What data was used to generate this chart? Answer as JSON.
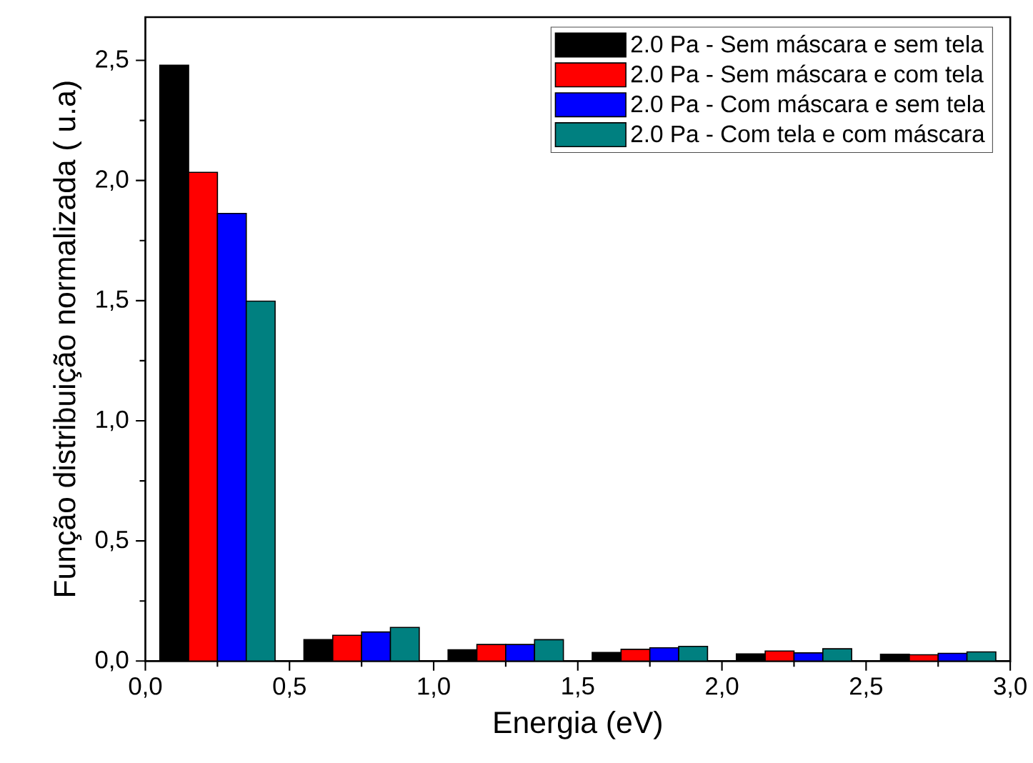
{
  "chart_data": {
    "type": "bar",
    "xlabel": "Energia (eV)",
    "ylabel": "Função distribuição normalizada ( u.a)",
    "xlim": [
      0,
      3.0
    ],
    "ylim": [
      0,
      2.68
    ],
    "xticks": [
      {
        "value": 0,
        "label": "0,0"
      },
      {
        "value": 0.5,
        "label": "0,5"
      },
      {
        "value": 1.0,
        "label": "1,0"
      },
      {
        "value": 1.5,
        "label": "1,5"
      },
      {
        "value": 2.0,
        "label": "2,0"
      },
      {
        "value": 2.5,
        "label": "2,5"
      },
      {
        "value": 3.0,
        "label": "3,0"
      }
    ],
    "yticks": [
      {
        "value": 0,
        "label": "0,0"
      },
      {
        "value": 0.5,
        "label": "0,5"
      },
      {
        "value": 1.0,
        "label": "1,0"
      },
      {
        "value": 1.5,
        "label": "1,5"
      },
      {
        "value": 2.0,
        "label": "2,0"
      },
      {
        "value": 2.5,
        "label": "2,5"
      }
    ],
    "legend": "top right",
    "grid": false,
    "series": [
      {
        "name": "2.0 Pa - Sem máscara e sem tela",
        "color": "#000000",
        "x": [
          0.1,
          0.6,
          1.1,
          1.6,
          2.1,
          2.6
        ],
        "values": [
          2.48,
          0.089,
          0.047,
          0.036,
          0.03,
          0.028
        ]
      },
      {
        "name": "2.0 Pa - Sem máscara e com tela",
        "color": "#ff0000",
        "x": [
          0.2,
          0.7,
          1.2,
          1.7,
          2.2,
          2.7
        ],
        "values": [
          2.034,
          0.107,
          0.069,
          0.049,
          0.042,
          0.026
        ]
      },
      {
        "name": "2.0 Pa - Com máscara e sem tela",
        "color": "#0000ff",
        "x": [
          0.3,
          0.8,
          1.3,
          1.8,
          2.3,
          2.8
        ],
        "values": [
          1.863,
          0.121,
          0.069,
          0.055,
          0.034,
          0.032
        ]
      },
      {
        "name": "2.0 Pa - Com tela e com máscara",
        "color": "#008080",
        "x": [
          0.4,
          0.9,
          1.4,
          1.9,
          2.4,
          2.9
        ],
        "values": [
          1.498,
          0.14,
          0.089,
          0.061,
          0.051,
          0.038
        ]
      }
    ]
  }
}
